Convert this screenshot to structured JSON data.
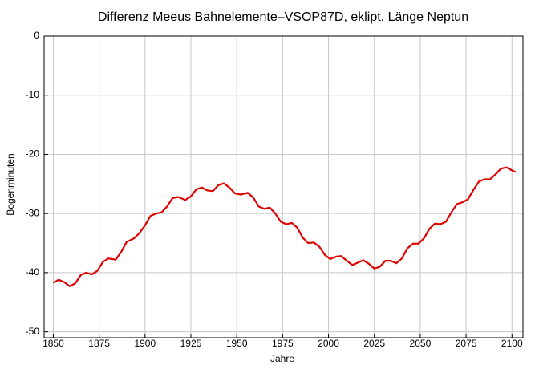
{
  "chart_data": {
    "type": "line",
    "title": "Differenz Meeus Bahnelemente–VSOP87D, eklipt. Länge Neptun",
    "x_label": "Jahre",
    "y_label": "Bogenminuten",
    "xlim": [
      1845,
      2106
    ],
    "ylim": [
      -51,
      0
    ],
    "xticks": [
      1850,
      1875,
      1900,
      1925,
      1950,
      1975,
      2000,
      2025,
      2050,
      2075,
      2100
    ],
    "yticks": [
      0,
      -10,
      -20,
      -30,
      -40,
      -50
    ],
    "grid": true,
    "x": [
      1850,
      1853,
      1856,
      1859,
      1862,
      1865,
      1868,
      1871,
      1874,
      1877,
      1880,
      1884,
      1887,
      1890,
      1894,
      1897,
      1900,
      1903,
      1906,
      1909,
      1912,
      1915,
      1918,
      1922,
      1925,
      1928,
      1931,
      1934,
      1937,
      1940,
      1943,
      1946,
      1949,
      1952,
      1956,
      1959,
      1962,
      1965,
      1968,
      1971,
      1974,
      1977,
      1980,
      1983,
      1986,
      1989,
      1992,
      1995,
      1998,
      2001,
      2004,
      2007,
      2010,
      2013,
      2016,
      2019,
      2022,
      2025,
      2028,
      2031,
      2034,
      2037,
      2040,
      2043,
      2046,
      2049,
      2052,
      2055,
      2058,
      2061,
      2064,
      2067,
      2070,
      2073,
      2076,
      2079,
      2082,
      2085,
      2088,
      2091,
      2094,
      2097,
      2100,
      2102
    ],
    "series": [
      {
        "color": "#e00000",
        "values": [
          -41.7,
          -41.2,
          -41.6,
          -42.3,
          -41.8,
          -40.4,
          -40.0,
          -40.3,
          -39.7,
          -38.2,
          -37.6,
          -37.8,
          -36.5,
          -34.8,
          -34.2,
          -33.3,
          -32.0,
          -30.4,
          -30.0,
          -29.8,
          -28.8,
          -27.4,
          -27.2,
          -27.7,
          -27.1,
          -25.9,
          -25.6,
          -26.1,
          -26.2,
          -25.2,
          -24.9,
          -25.6,
          -26.6,
          -26.8,
          -26.5,
          -27.3,
          -28.8,
          -29.2,
          -29.0,
          -30.0,
          -31.4,
          -31.8,
          -31.6,
          -32.4,
          -34.1,
          -35.0,
          -34.9,
          -35.6,
          -37.0,
          -37.7,
          -37.3,
          -37.2,
          -38.0,
          -38.7,
          -38.3,
          -37.9,
          -38.5,
          -39.3,
          -39.0,
          -38.0,
          -38.0,
          -38.4,
          -37.6,
          -35.9,
          -35.1,
          -35.1,
          -34.2,
          -32.6,
          -31.7,
          -31.8,
          -31.4,
          -29.8,
          -28.4,
          -28.1,
          -27.6,
          -26.0,
          -24.6,
          -24.2,
          -24.2,
          -23.4,
          -22.4,
          -22.2,
          -22.7,
          -23.0
        ]
      }
    ]
  }
}
